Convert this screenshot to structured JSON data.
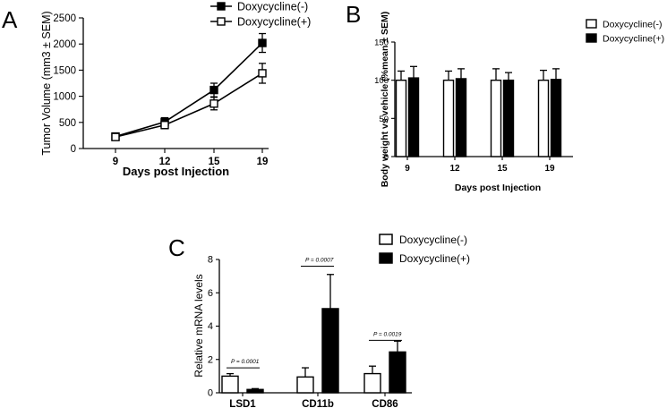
{
  "chart_data": [
    {
      "panel": "A",
      "type": "line",
      "xlabel": "Days post Injection",
      "ylabel": "Tumor Volume (mm3 ± SEM)",
      "categories": [
        "9",
        "12",
        "15",
        "19"
      ],
      "ylim": [
        0,
        2500
      ],
      "yticks": [
        0,
        500,
        1000,
        1500,
        2000,
        2500
      ],
      "legend_position": "top-center",
      "series": [
        {
          "name": "Doxycycline(-)",
          "marker": "filled-square",
          "values": [
            230,
            510,
            1120,
            2020
          ],
          "errors": [
            30,
            80,
            130,
            180
          ]
        },
        {
          "name": "Doxycycline(+)",
          "marker": "open-square",
          "values": [
            220,
            450,
            860,
            1440
          ],
          "errors": [
            25,
            70,
            120,
            190
          ]
        }
      ]
    },
    {
      "panel": "B",
      "type": "bar",
      "xlabel": "Days post Injection",
      "ylabel": "Body weight vs vehicle (%mean ± SEM)",
      "categories": [
        "9",
        "12",
        "15",
        "19"
      ],
      "ylim": [
        0,
        150
      ],
      "yticks": [
        0,
        50,
        100,
        150
      ],
      "legend_position": "top-right",
      "series": [
        {
          "name": "Doxycycline(-)",
          "color": "#ffffff",
          "values": [
            100,
            100,
            100,
            100
          ],
          "errors": [
            12,
            12,
            15,
            13
          ]
        },
        {
          "name": "Doxycycline(+)",
          "color": "#000000",
          "values": [
            103,
            102,
            100,
            101
          ],
          "errors": [
            15,
            13,
            10,
            14
          ]
        }
      ]
    },
    {
      "panel": "C",
      "type": "bar",
      "xlabel": "",
      "ylabel": "Relative mRNA levels",
      "categories": [
        "LSD1",
        "CD11b",
        "CD86"
      ],
      "ylim": [
        0,
        8
      ],
      "yticks": [
        0,
        2,
        4,
        6,
        8
      ],
      "legend_position": "top-right",
      "series": [
        {
          "name": "Doxycycline(-)",
          "color": "#ffffff",
          "values": [
            1.0,
            0.95,
            1.15
          ],
          "errors": [
            0.15,
            0.55,
            0.45
          ]
        },
        {
          "name": "Doxycycline(+)",
          "color": "#000000",
          "values": [
            0.2,
            5.05,
            2.45
          ],
          "errors": [
            0.05,
            2.05,
            0.65
          ]
        }
      ],
      "annotations": [
        "P = 0.0001",
        "P = 0.0007",
        "P = 0.0019"
      ]
    }
  ],
  "panel_letters": [
    "A",
    "B",
    "C"
  ]
}
